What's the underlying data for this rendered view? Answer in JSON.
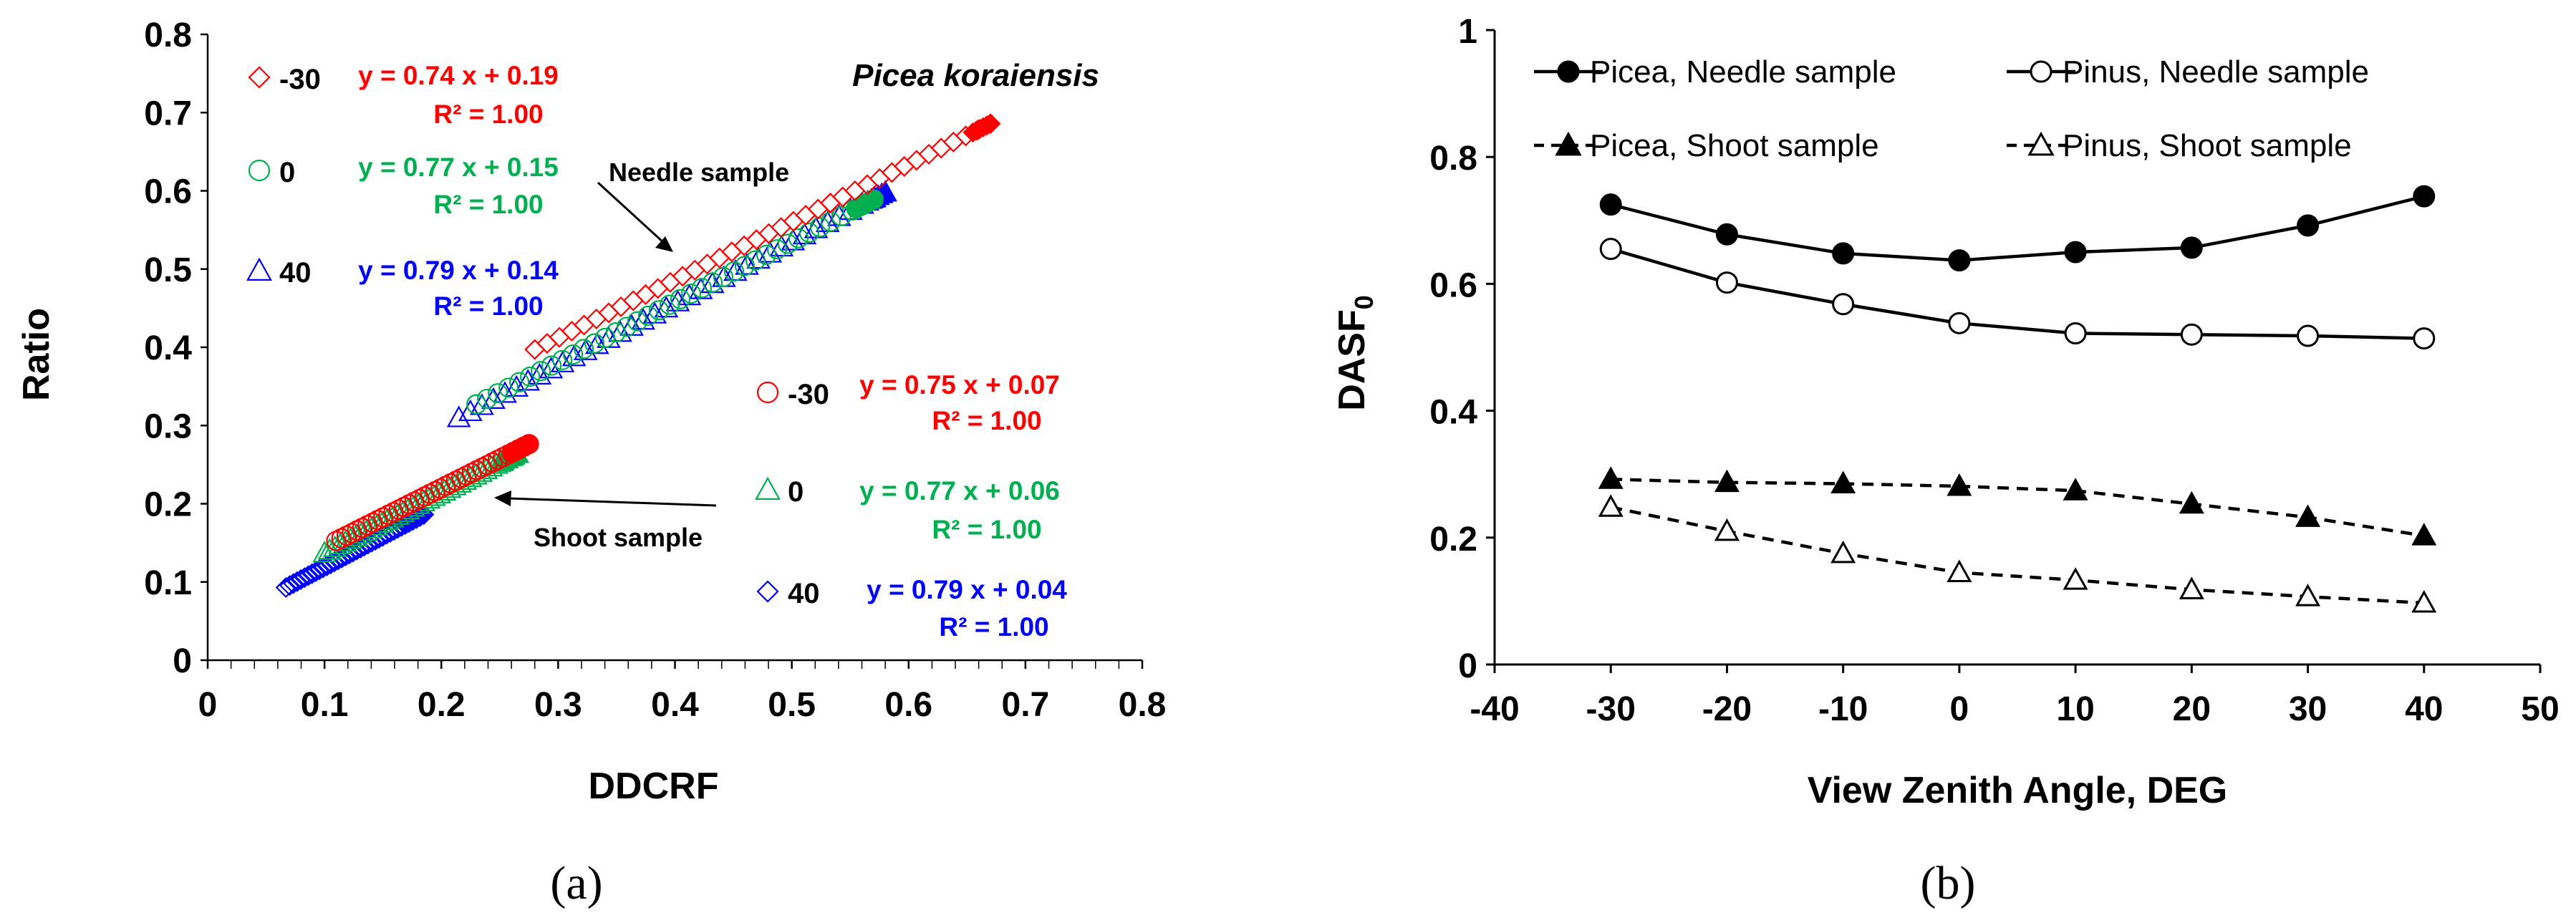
{
  "chart_data": [
    {
      "panel": "(a)",
      "type": "scatter",
      "title": "Picea koraiensis",
      "xlabel": "DDCRF",
      "ylabel": "Ratio",
      "xlim": [
        0,
        0.8
      ],
      "ylim": [
        0,
        0.8
      ],
      "xticks": [
        "0",
        "0.1",
        "0.2",
        "0.3",
        "0.4",
        "0.5",
        "0.6",
        "0.7",
        "0.8"
      ],
      "yticks": [
        "0",
        "0.1",
        "0.2",
        "0.3",
        "0.4",
        "0.5",
        "0.6",
        "0.7",
        "0.8"
      ],
      "grid": false,
      "annotations": [
        "Needle sample",
        "Shoot sample"
      ],
      "groups": [
        {
          "sample": "Needle",
          "series": [
            {
              "name": "-30",
              "marker": "diamond",
              "color": "#ff0000",
              "x_range": [
                0.28,
                0.67
              ],
              "slope": 0.74,
              "intercept": 0.19,
              "equation": "y = 0.74 x + 0.19",
              "r2": "R² = 1.00"
            },
            {
              "name": "0",
              "marker": "circle",
              "color": "#00b050",
              "x_range": [
                0.23,
                0.57
              ],
              "slope": 0.77,
              "intercept": 0.15,
              "equation": "y = 0.77 x + 0.15",
              "r2": "R² = 1.00"
            },
            {
              "name": "40",
              "marker": "triangle",
              "color": "#0000ff",
              "x_range": [
                0.215,
                0.58
              ],
              "slope": 0.79,
              "intercept": 0.14,
              "equation": "y = 0.79 x + 0.14",
              "r2": "R² = 1.00"
            }
          ]
        },
        {
          "sample": "Shoot",
          "series": [
            {
              "name": "-30",
              "marker": "circle",
              "color": "#ff0000",
              "x_range": [
                0.11,
                0.275
              ],
              "slope": 0.75,
              "intercept": 0.07,
              "equation": "y = 0.75 x + 0.07",
              "r2": "R² = 1.00"
            },
            {
              "name": "0",
              "marker": "triangle",
              "color": "#00b050",
              "x_range": [
                0.1,
                0.265
              ],
              "slope": 0.77,
              "intercept": 0.06,
              "equation": "y = 0.77 x + 0.06",
              "r2": "R² = 1.00"
            },
            {
              "name": "40",
              "marker": "diamond",
              "color": "#0000ff",
              "x_range": [
                0.067,
                0.185
              ],
              "slope": 0.79,
              "intercept": 0.04,
              "equation": "y = 0.79 x + 0.04",
              "r2": "R² = 1.00"
            }
          ]
        }
      ]
    },
    {
      "panel": "(b)",
      "type": "line",
      "xlabel": "View Zenith Angle, DEG",
      "ylabel": "DASF",
      "ylabel_subscript": "0",
      "xlim": [
        -40,
        50
      ],
      "ylim": [
        0,
        1
      ],
      "xticks": [
        "-40",
        "-30",
        "-20",
        "-10",
        "0",
        "10",
        "20",
        "30",
        "40",
        "50"
      ],
      "yticks": [
        "0",
        "0.2",
        "0.4",
        "0.6",
        "0.8",
        "1"
      ],
      "grid": false,
      "x": [
        -30,
        -20,
        -10,
        0,
        10,
        20,
        30,
        40
      ],
      "series": [
        {
          "name": "Picea, Needle sample",
          "marker": "filled-circle",
          "dash": "solid",
          "values": [
            0.725,
            0.678,
            0.648,
            0.637,
            0.65,
            0.657,
            0.692,
            0.738
          ]
        },
        {
          "name": "Pinus, Needle sample",
          "marker": "open-circle",
          "dash": "solid",
          "values": [
            0.655,
            0.602,
            0.568,
            0.538,
            0.522,
            0.52,
            0.518,
            0.514
          ]
        },
        {
          "name": "Picea, Shoot sample",
          "marker": "filled-triangle",
          "dash": "dashed",
          "values": [
            0.292,
            0.287,
            0.285,
            0.281,
            0.274,
            0.253,
            0.232,
            0.203
          ]
        },
        {
          "name": "Pinus, Shoot sample",
          "marker": "open-triangle",
          "dash": "dashed",
          "values": [
            0.248,
            0.21,
            0.175,
            0.145,
            0.133,
            0.118,
            0.107,
            0.097
          ]
        }
      ]
    }
  ],
  "panel_labels": {
    "a": "(a)",
    "b": "(b)"
  }
}
